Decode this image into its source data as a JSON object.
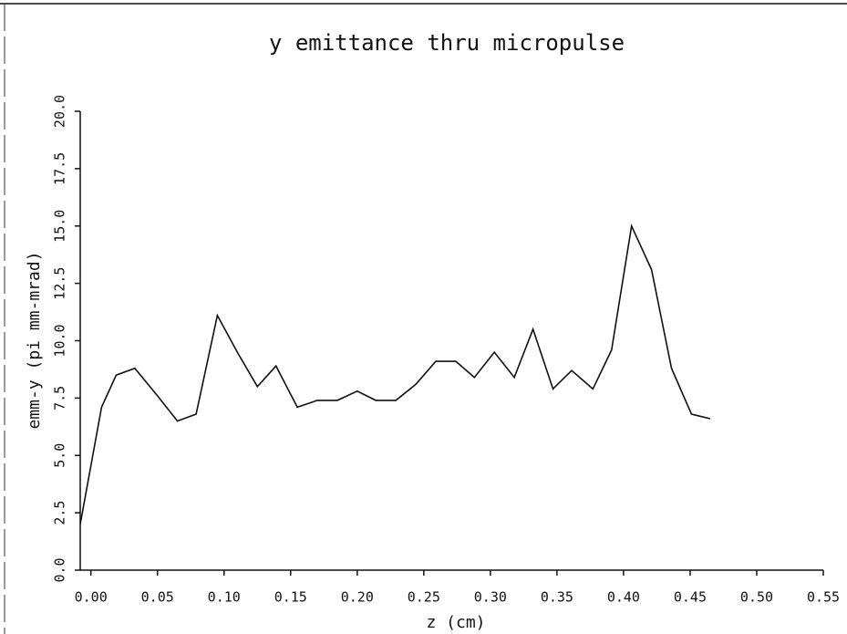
{
  "chart_data": {
    "type": "line",
    "title": "y emittance thru micropulse",
    "xlabel": "z (cm)",
    "ylabel": "emm-y (pi mm-mrad)",
    "color": "#111111",
    "x": [
      -0.008,
      0.008,
      0.019,
      0.033,
      0.05,
      0.065,
      0.079,
      0.095,
      0.11,
      0.125,
      0.139,
      0.155,
      0.17,
      0.185,
      0.2,
      0.214,
      0.229,
      0.244,
      0.259,
      0.274,
      0.288,
      0.303,
      0.318,
      0.332,
      0.347,
      0.361,
      0.377,
      0.391,
      0.406,
      0.421,
      0.436,
      0.451,
      0.465
    ],
    "values": [
      2.0,
      7.1,
      8.5,
      8.8,
      7.6,
      6.5,
      6.8,
      11.1,
      9.5,
      8.0,
      8.9,
      7.1,
      7.4,
      7.4,
      7.8,
      7.4,
      7.4,
      8.1,
      9.1,
      9.1,
      8.4,
      9.5,
      8.4,
      10.5,
      7.9,
      8.7,
      7.9,
      9.6,
      15.0,
      13.1,
      8.8,
      6.8,
      6.6
    ],
    "xlim": [
      -0.008,
      0.55
    ],
    "ylim": [
      0,
      20
    ],
    "xticks": [
      {
        "value": 0,
        "label": "0.00"
      },
      {
        "value": 0.05,
        "label": "0.05"
      },
      {
        "value": 0.1,
        "label": "0.10"
      },
      {
        "value": 0.15,
        "label": "0.15"
      },
      {
        "value": 0.2,
        "label": "0.20"
      },
      {
        "value": 0.25,
        "label": "0.25"
      },
      {
        "value": 0.3,
        "label": "0.30"
      },
      {
        "value": 0.35,
        "label": "0.35"
      },
      {
        "value": 0.4,
        "label": "0.40"
      },
      {
        "value": 0.45,
        "label": "0.45"
      },
      {
        "value": 0.5,
        "label": "0.50"
      },
      {
        "value": 0.55,
        "label": "0.55"
      }
    ],
    "yticks": [
      {
        "value": 0,
        "label": "0.0"
      },
      2.5,
      {
        "value": 5,
        "label": "5.0"
      },
      7.5,
      {
        "value": 10,
        "label": "10.0"
      },
      12.5,
      {
        "value": 15,
        "label": "15.0"
      },
      17.5,
      {
        "value": 20,
        "label": "20.0"
      }
    ],
    "grid": false
  }
}
